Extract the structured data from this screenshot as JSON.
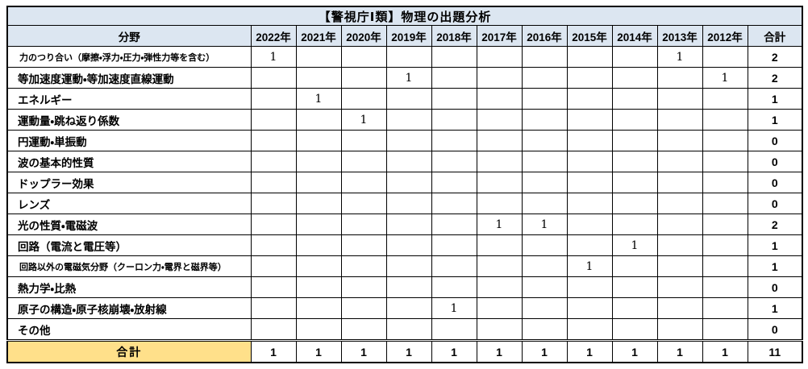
{
  "title": "【警視庁Ⅰ類】物理の出題分析",
  "colors": {
    "header_bg": "#dce6f1",
    "footer_label_bg": "#ffe08a",
    "border": "#000000"
  },
  "chart_data": {
    "type": "table",
    "title": "【警視庁Ⅰ類】物理の出題分析",
    "columns": [
      "分野",
      "2022年",
      "2021年",
      "2020年",
      "2019年",
      "2018年",
      "2017年",
      "2016年",
      "2015年",
      "2014年",
      "2013年",
      "2012年",
      "合計"
    ],
    "rows": [
      {
        "category": "力のつり合い（摩擦・浮力・圧力・弾性力等を含む）",
        "values": [
          "1",
          "",
          "",
          "",
          "",
          "",
          "",
          "",
          "",
          "1",
          ""
        ],
        "total": "2"
      },
      {
        "category": "等加速度運動・等加速度直線運動",
        "values": [
          "",
          "",
          "",
          "1",
          "",
          "",
          "",
          "",
          "",
          "",
          "1"
        ],
        "total": "2"
      },
      {
        "category": "エネルギー",
        "values": [
          "",
          "1",
          "",
          "",
          "",
          "",
          "",
          "",
          "",
          "",
          ""
        ],
        "total": "1"
      },
      {
        "category": "運動量・跳ね返り係数",
        "values": [
          "",
          "",
          "1",
          "",
          "",
          "",
          "",
          "",
          "",
          "",
          ""
        ],
        "total": "1"
      },
      {
        "category": "円運動・単振動",
        "values": [
          "",
          "",
          "",
          "",
          "",
          "",
          "",
          "",
          "",
          "",
          ""
        ],
        "total": "0"
      },
      {
        "category": "波の基本的性質",
        "values": [
          "",
          "",
          "",
          "",
          "",
          "",
          "",
          "",
          "",
          "",
          ""
        ],
        "total": "0"
      },
      {
        "category": "ドップラー効果",
        "values": [
          "",
          "",
          "",
          "",
          "",
          "",
          "",
          "",
          "",
          "",
          ""
        ],
        "total": "0"
      },
      {
        "category": "レンズ",
        "values": [
          "",
          "",
          "",
          "",
          "",
          "",
          "",
          "",
          "",
          "",
          ""
        ],
        "total": "0"
      },
      {
        "category": "光の性質・電磁波",
        "values": [
          "",
          "",
          "",
          "",
          "",
          "1",
          "1",
          "",
          "",
          "",
          ""
        ],
        "total": "2"
      },
      {
        "category": "回路（電流と電圧等）",
        "values": [
          "",
          "",
          "",
          "",
          "",
          "",
          "",
          "",
          "1",
          "",
          ""
        ],
        "total": "1"
      },
      {
        "category": "回路以外の電磁気分野（クーロン力・電界と磁界等）",
        "values": [
          "",
          "",
          "",
          "",
          "",
          "",
          "",
          "1",
          "",
          "",
          ""
        ],
        "total": "1"
      },
      {
        "category": "熱力学・比熱",
        "values": [
          "",
          "",
          "",
          "",
          "",
          "",
          "",
          "",
          "",
          "",
          ""
        ],
        "total": "0"
      },
      {
        "category": "原子の構造・原子核崩壊・放射線",
        "values": [
          "",
          "",
          "",
          "",
          "1",
          "",
          "",
          "",
          "",
          "",
          ""
        ],
        "total": "1"
      },
      {
        "category": "その他",
        "values": [
          "",
          "",
          "",
          "",
          "",
          "",
          "",
          "",
          "",
          "",
          ""
        ],
        "total": "0"
      }
    ],
    "footer": {
      "label": "合計",
      "values": [
        "1",
        "1",
        "1",
        "1",
        "1",
        "1",
        "1",
        "1",
        "1",
        "1",
        "1"
      ],
      "total": "11"
    }
  }
}
